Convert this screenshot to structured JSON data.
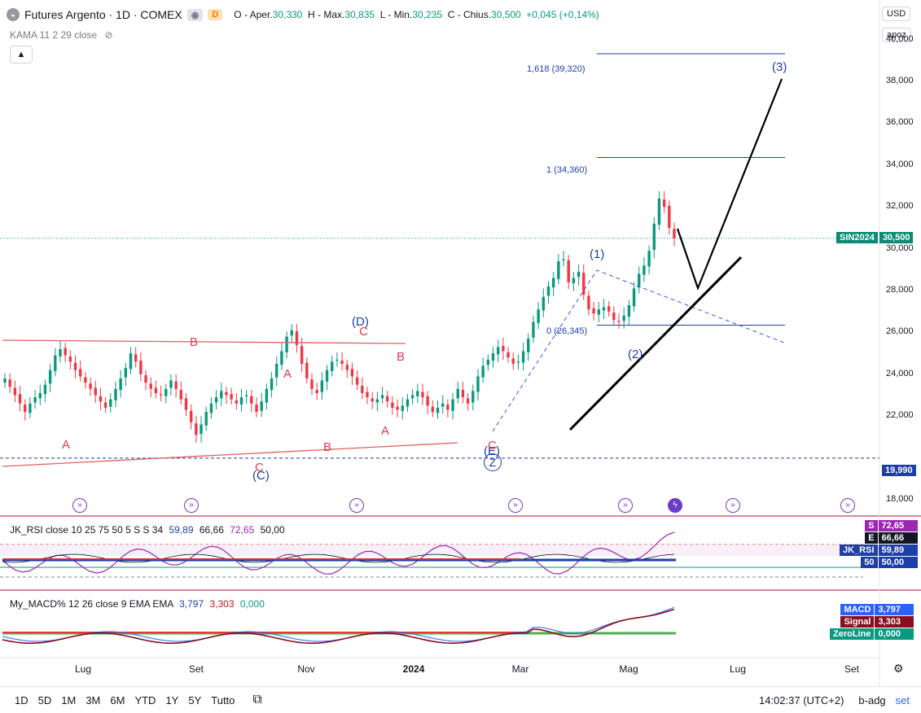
{
  "header": {
    "symbol": "Futures Argento · 1D · COMEX",
    "badge_d": "D",
    "ohlc": {
      "o_label": "O - Aper.",
      "o": "30,330",
      "h_label": "H - Max.",
      "h": "30,835",
      "l_label": "L - Min.",
      "l": "30,235",
      "c_label": "C - Chius.",
      "c": "30,500",
      "chg": "+0,045 (+0,14%)"
    },
    "kama": "KAMA 11 2 29 close"
  },
  "top_right": {
    "currency": "USD",
    "mode": "apoz"
  },
  "price_axis": {
    "ticks": [
      "40,000",
      "38,000",
      "36,000",
      "34,000",
      "32,000",
      "30,000",
      "28,000",
      "26,000",
      "24,000",
      "22,000",
      "18,000"
    ],
    "tick_values": [
      40,
      38,
      36,
      34,
      32,
      30,
      28,
      26,
      24,
      22,
      18
    ],
    "current_symbol": "SIN2024",
    "current_price": "30,500",
    "current_value": 30.5,
    "level_tag": "19,990",
    "level_value": 19.99
  },
  "time_axis": [
    "Lug",
    "Set",
    "Nov",
    "2024",
    "Mar",
    "Mag",
    "Lug",
    "Set"
  ],
  "fib_labels": [
    "1,618 (39,320)",
    "1 (34,360)",
    "0 (26,345)"
  ],
  "elliott_labels": {
    "black": [
      "(1)",
      "(2)",
      "(3)",
      "(D)",
      "(C)",
      "(E)",
      "Z"
    ],
    "red": [
      "A",
      "B",
      "C",
      "A",
      "B",
      "A",
      "B",
      "C",
      "C",
      "B"
    ]
  },
  "rsi": {
    "label": "JK_RSI close 10 25 75 50 5 S S 34",
    "values": [
      "59,89",
      "66,66",
      "72,65",
      "50,00"
    ],
    "tags": {
      "s_key": "S",
      "s": "72,65",
      "e_key": "E",
      "e": "66,66",
      "rsi_key": "JK_RSI",
      "rsi": "59,89",
      "m_key": "50",
      "m": "50,00"
    }
  },
  "macd": {
    "label": "My_MACD% 12 26 close 9 EMA EMA",
    "values": [
      "3,797",
      "3,303",
      "0,000"
    ],
    "tags": {
      "macd_key": "MACD",
      "macd": "3,797",
      "signal_key": "Signal",
      "signal": "3,303",
      "zero_key": "ZeroLine",
      "zero": "0,000"
    }
  },
  "bottom_bar": {
    "ranges": [
      "1D",
      "5D",
      "1M",
      "3M",
      "6M",
      "YTD",
      "1Y",
      "5Y",
      "Tutto"
    ],
    "time": "14:02:37 (UTC+2)",
    "adj": "b-adg",
    "set": "set"
  },
  "colors": {
    "up": "#089981",
    "down": "#f23645",
    "accent": "#2962ff",
    "wave_blue": "#1e3fa8"
  },
  "chart_data": {
    "type": "candlestick",
    "title": "Futures Argento · 1D · COMEX",
    "ylim": [
      17.3,
      41.5
    ],
    "y_unit": "USD",
    "series": [
      {
        "close": [
          23.8,
          23.4,
          23.0,
          22.6,
          22.2,
          22.6,
          22.9,
          23.1,
          23.5,
          24.2,
          24.9,
          25.2,
          24.9,
          24.6,
          24.2,
          23.9,
          23.6,
          23.3,
          23.0,
          22.7,
          22.4,
          22.8,
          23.3,
          23.8,
          24.3,
          25.0,
          24.6,
          24.0,
          23.6,
          23.3,
          23.1,
          23.0,
          23.3,
          23.7,
          23.3,
          22.8,
          22.3,
          21.7,
          21.1,
          21.6,
          22.2,
          22.6,
          22.9,
          23.2,
          23.0,
          22.8,
          22.6,
          22.9,
          23.0,
          22.6,
          22.2,
          22.7,
          23.3,
          23.8,
          24.5,
          25.1,
          25.8,
          26.1,
          25.4,
          24.5,
          23.8,
          23.3,
          23.1,
          23.7,
          24.2,
          24.6,
          24.7,
          24.5,
          24.2,
          23.9,
          23.5,
          23.1,
          22.9,
          22.7,
          22.8,
          23.0,
          22.7,
          22.4,
          22.3,
          22.5,
          22.8,
          23.0,
          23.2,
          22.9,
          22.5,
          22.2,
          22.4,
          22.6,
          22.3,
          22.8,
          23.3,
          22.9,
          22.6,
          23.2,
          23.9,
          24.4,
          24.7,
          25.0,
          25.3,
          25.1,
          24.8,
          24.5,
          24.6,
          25.1,
          25.7,
          26.5,
          27.1,
          27.7,
          28.2,
          28.6,
          29.4,
          29.5,
          28.4,
          28.6,
          28.9,
          27.8,
          27.1,
          26.9,
          27.1,
          27.2,
          27.0,
          26.6,
          26.5,
          26.8,
          27.3,
          28.1,
          28.8,
          29.2,
          29.9,
          31.2,
          32.4,
          32.0,
          31.0,
          30.5
        ]
      }
    ],
    "overlay_lines": [
      {
        "name": "fib_1.618",
        "value": 39.32
      },
      {
        "name": "fib_1",
        "value": 34.36
      },
      {
        "name": "fib_0",
        "value": 26.345
      },
      {
        "name": "support",
        "value": 19.99
      }
    ]
  }
}
